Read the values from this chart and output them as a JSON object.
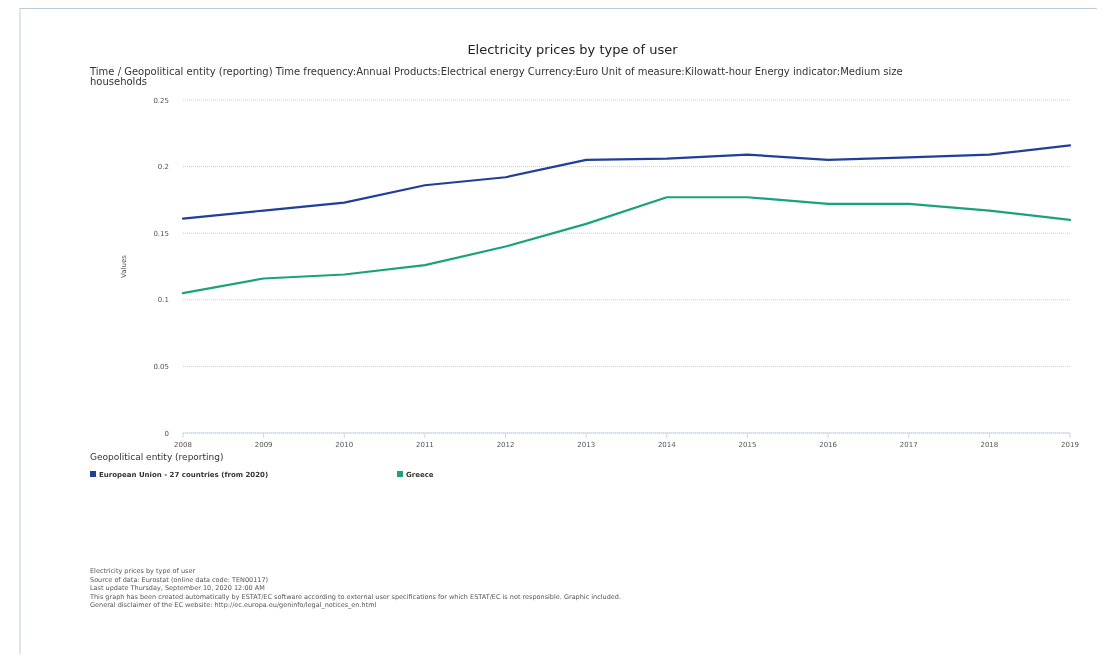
{
  "chart_data": {
    "type": "line",
    "title": "Electricity prices by type of user",
    "subtitle": "Time / Geopolitical entity (reporting)  Time frequency:Annual  Products:Electrical energy  Currency:Euro  Unit of measure:Kilowatt-hour  Energy indicator:Medium size households",
    "ylabel": "Values",
    "legend_title": "Geopolitical entity (reporting)",
    "x": [
      2008,
      2009,
      2010,
      2011,
      2012,
      2013,
      2014,
      2015,
      2016,
      2017,
      2018,
      2019
    ],
    "xlim": [
      2008,
      2019
    ],
    "xticks": [
      2008,
      2009,
      2010,
      2011,
      2012,
      2013,
      2014,
      2015,
      2016,
      2017,
      2018,
      2019
    ],
    "ylim": [
      0,
      0.25
    ],
    "yticks": [
      0,
      0.05,
      0.1,
      0.15,
      0.2,
      0.25
    ],
    "series": [
      {
        "name": "European Union - 27 countries (from 2020)",
        "color": "#1f3f99",
        "values": [
          0.161,
          0.167,
          0.173,
          0.186,
          0.192,
          0.205,
          0.206,
          0.209,
          0.205,
          0.207,
          0.209,
          0.216
        ]
      },
      {
        "name": "Greece",
        "color": "#1aa37a",
        "values": [
          0.105,
          0.116,
          0.119,
          0.126,
          0.14,
          0.157,
          0.177,
          0.177,
          0.172,
          0.172,
          0.167,
          0.16
        ]
      }
    ],
    "grid": "y",
    "legend": "bottom",
    "marker": "none",
    "line_style": "solid",
    "annotations": [
      "Electricity prices by type of user",
      "Source of data: Eurostat (online data code: TEN00117)",
      "Last update Thursday, September 10, 2020 12:00 AM",
      "This graph has been created automatically by ESTAT/EC software according to external user specifications for which ESTAT/EC is not responsible. Graphic included.",
      "General disclaimer of the EC website: http://ec.europa.eu/geninfo/legal_notices_en.html"
    ]
  }
}
